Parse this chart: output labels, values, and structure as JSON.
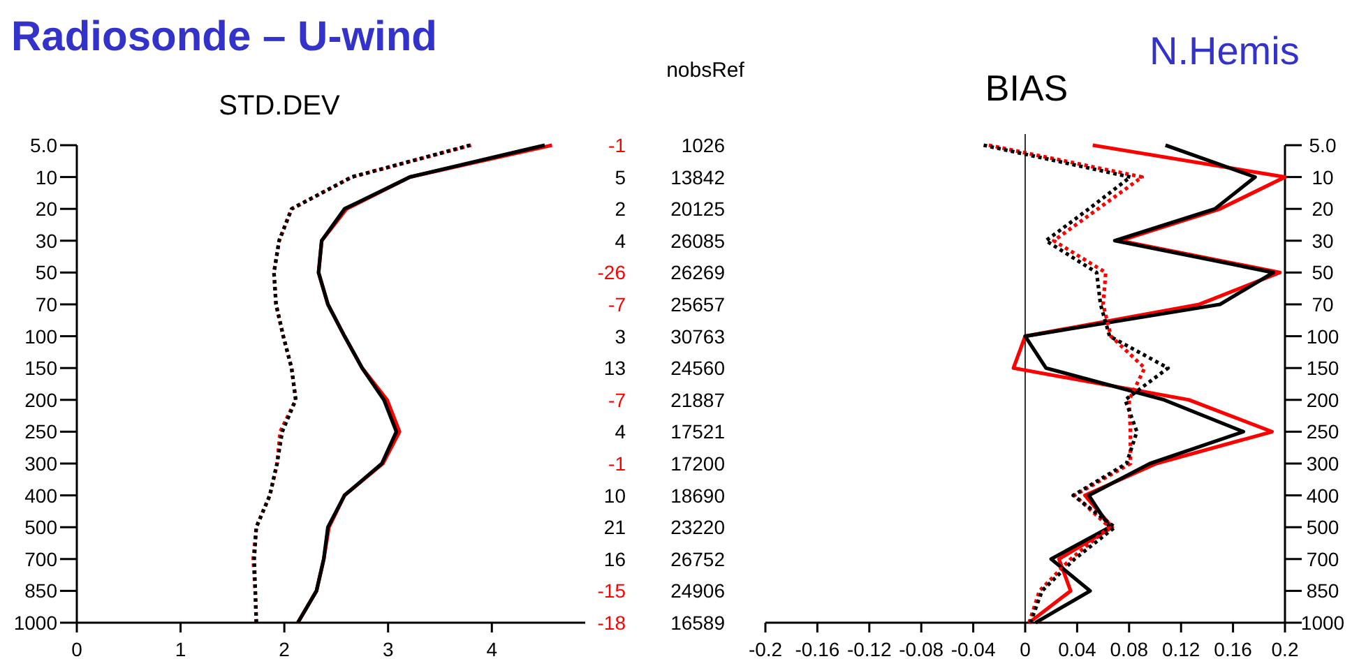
{
  "chart_data": [
    {
      "type": "line",
      "title": "STD.DEV",
      "annotations": [
        "Radiosonde – U-wind"
      ],
      "orientation": "horizontal",
      "categories": [
        "5.0",
        "10",
        "20",
        "30",
        "50",
        "70",
        "100",
        "150",
        "200",
        "250",
        "300",
        "400",
        "500",
        "700",
        "850",
        "1000"
      ],
      "xlim": [
        0,
        4.9
      ],
      "xticks": [
        0,
        1,
        2,
        3,
        4
      ],
      "grid": false,
      "series": [
        {
          "color": "#ff0000",
          "line_style": "solid",
          "values": [
            4.58,
            3.21,
            2.6,
            2.36,
            2.33,
            2.42,
            2.58,
            2.75,
            2.99,
            3.11,
            2.95,
            2.58,
            2.43,
            2.38,
            2.31,
            2.13
          ]
        },
        {
          "color": "#000000",
          "line_style": "solid",
          "values": [
            4.51,
            3.21,
            2.58,
            2.36,
            2.33,
            2.42,
            2.58,
            2.75,
            2.96,
            3.08,
            2.94,
            2.58,
            2.42,
            2.38,
            2.31,
            2.13
          ]
        },
        {
          "color": "#ff0000",
          "line_style": "dotted",
          "values": [
            3.8,
            2.65,
            2.07,
            1.95,
            1.9,
            1.92,
            1.99,
            2.07,
            2.11,
            1.96,
            1.93,
            1.86,
            1.73,
            1.7,
            1.72,
            1.73
          ]
        },
        {
          "color": "#000000",
          "line_style": "dotted",
          "values": [
            3.79,
            2.65,
            2.07,
            1.95,
            1.9,
            1.92,
            1.99,
            2.07,
            2.11,
            1.98,
            1.93,
            1.86,
            1.73,
            1.71,
            1.72,
            1.73
          ]
        }
      ]
    },
    {
      "type": "other",
      "title": "nobsRef",
      "annotations": [
        "-1",
        "1026",
        "5",
        "13842",
        "2",
        "20125",
        "4",
        "26085",
        "-26",
        "26269",
        "-7",
        "25657",
        "3",
        "30763",
        "13",
        "24560",
        "-7",
        "21887",
        "4",
        "17521",
        "-1",
        "17200",
        "10",
        "18690",
        "21",
        "23220",
        "16",
        "26752",
        "-15",
        "24906",
        "-18",
        "16589"
      ]
    },
    {
      "type": "line",
      "title": "BIAS",
      "annotations": [
        "N.Hemis"
      ],
      "orientation": "horizontal",
      "categories": [
        "5.0",
        "10",
        "20",
        "30",
        "50",
        "70",
        "100",
        "150",
        "200",
        "250",
        "300",
        "400",
        "500",
        "700",
        "850",
        "1000"
      ],
      "xlim": [
        -0.2,
        0.2
      ],
      "xticks": [
        -0.2,
        -0.16,
        -0.12,
        -0.08,
        -0.04,
        0,
        0.04,
        0.08,
        0.12,
        0.16,
        0.2
      ],
      "grid": false,
      "ref_lines": [
        {
          "axis": "x",
          "value": 0,
          "color": "#000000"
        }
      ],
      "series": [
        {
          "color": "#ff0000",
          "line_style": "solid",
          "values": [
            0.052,
            0.2,
            0.15,
            0.073,
            0.196,
            0.134,
            0,
            -0.009,
            0.126,
            0.19,
            0.101,
            0.046,
            0.067,
            0.026,
            0.035,
            0.003
          ]
        },
        {
          "color": "#000000",
          "line_style": "solid",
          "values": [
            0.108,
            0.177,
            0.146,
            0.069,
            0.191,
            0.15,
            0,
            0.016,
            0.107,
            0.168,
            0.096,
            0.049,
            0.065,
            0.02,
            0.05,
            0.008
          ]
        },
        {
          "color": "#ff0000",
          "line_style": "dotted",
          "values": [
            -0.028,
            0.09,
            0.056,
            0.022,
            0.062,
            0.06,
            0.066,
            0.092,
            0.08,
            0.081,
            0.081,
            0.038,
            0.065,
            0.035,
            0.011,
            0.003
          ]
        },
        {
          "color": "#000000",
          "line_style": "dotted",
          "values": [
            -0.032,
            0.081,
            0.049,
            0.016,
            0.055,
            0.058,
            0.065,
            0.11,
            0.077,
            0.086,
            0.078,
            0.037,
            0.069,
            0.038,
            0.013,
            0.004
          ]
        }
      ]
    }
  ]
}
